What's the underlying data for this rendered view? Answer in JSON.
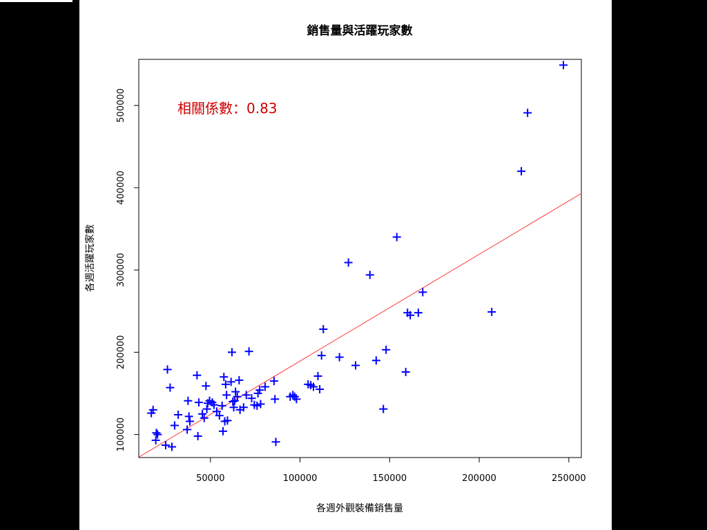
{
  "chart_data": {
    "type": "scatter",
    "title": "銷售量與活躍玩家數",
    "xlabel": "各週外觀裝備銷售量",
    "ylabel": "各週活躍玩家數",
    "xlim": [
      10000,
      257000
    ],
    "ylim": [
      72000,
      556000
    ],
    "x_ticks": [
      50000,
      100000,
      150000,
      200000,
      250000
    ],
    "y_ticks": [
      100000,
      200000,
      300000,
      400000,
      500000
    ],
    "x_tick_labels": [
      "50000",
      "100000",
      "150000",
      "200000",
      "250000"
    ],
    "y_tick_labels": [
      "100000",
      "200000",
      "300000",
      "400000",
      "500000"
    ],
    "annotation": "相關係數：0.83",
    "marker": "+",
    "point_color": "#0000ff",
    "line_color": "#ff3b3b",
    "annotation_color": "#cc0000",
    "grid": false,
    "regression_line": {
      "x": [
        10000,
        257000
      ],
      "y": [
        72500,
        393000
      ]
    },
    "points": [
      [
        17000,
        126000
      ],
      [
        18000,
        130000
      ],
      [
        19500,
        93000
      ],
      [
        19800,
        102000
      ],
      [
        20500,
        100000
      ],
      [
        25000,
        87000
      ],
      [
        26000,
        179000
      ],
      [
        27500,
        157000
      ],
      [
        28500,
        85000
      ],
      [
        30000,
        111000
      ],
      [
        32000,
        124000
      ],
      [
        37000,
        106000
      ],
      [
        37500,
        141000
      ],
      [
        38000,
        122000
      ],
      [
        38500,
        116000
      ],
      [
        42500,
        172000
      ],
      [
        43000,
        98000
      ],
      [
        43500,
        139000
      ],
      [
        45500,
        125000
      ],
      [
        46500,
        120000
      ],
      [
        47500,
        159000
      ],
      [
        48000,
        131000
      ],
      [
        48500,
        138000
      ],
      [
        49500,
        141000
      ],
      [
        51000,
        139000
      ],
      [
        52000,
        136000
      ],
      [
        53500,
        128000
      ],
      [
        55000,
        123000
      ],
      [
        56500,
        135000
      ],
      [
        57000,
        104000
      ],
      [
        57500,
        170000
      ],
      [
        58000,
        116000
      ],
      [
        58500,
        161000
      ],
      [
        59000,
        148000
      ],
      [
        59500,
        117000
      ],
      [
        61500,
        164000
      ],
      [
        62000,
        200000
      ],
      [
        62500,
        140000
      ],
      [
        63000,
        133000
      ],
      [
        63500,
        141000
      ],
      [
        64000,
        152000
      ],
      [
        65000,
        146000
      ],
      [
        66000,
        166000
      ],
      [
        66500,
        130000
      ],
      [
        68500,
        133000
      ],
      [
        70000,
        148000
      ],
      [
        71500,
        201000
      ],
      [
        73000,
        144000
      ],
      [
        74500,
        136000
      ],
      [
        76000,
        135000
      ],
      [
        76500,
        150000
      ],
      [
        77500,
        154000
      ],
      [
        78000,
        137000
      ],
      [
        80500,
        158000
      ],
      [
        85500,
        165000
      ],
      [
        86000,
        143000
      ],
      [
        86500,
        91000
      ],
      [
        94500,
        146000
      ],
      [
        96000,
        148000
      ],
      [
        97000,
        146000
      ],
      [
        98000,
        143000
      ],
      [
        104500,
        161000
      ],
      [
        106000,
        160000
      ],
      [
        107500,
        158000
      ],
      [
        110000,
        171000
      ],
      [
        111000,
        155000
      ],
      [
        112000,
        196000
      ],
      [
        113000,
        228000
      ],
      [
        122000,
        194000
      ],
      [
        127000,
        309000
      ],
      [
        131000,
        184000
      ],
      [
        139000,
        294000
      ],
      [
        142500,
        190000
      ],
      [
        146500,
        131000
      ],
      [
        148000,
        203000
      ],
      [
        154000,
        340000
      ],
      [
        159000,
        176000
      ],
      [
        160000,
        248000
      ],
      [
        161500,
        245000
      ],
      [
        166000,
        248000
      ],
      [
        168500,
        273000
      ],
      [
        207000,
        249000
      ],
      [
        223500,
        420000
      ],
      [
        227000,
        491000
      ],
      [
        247000,
        549000
      ]
    ]
  }
}
